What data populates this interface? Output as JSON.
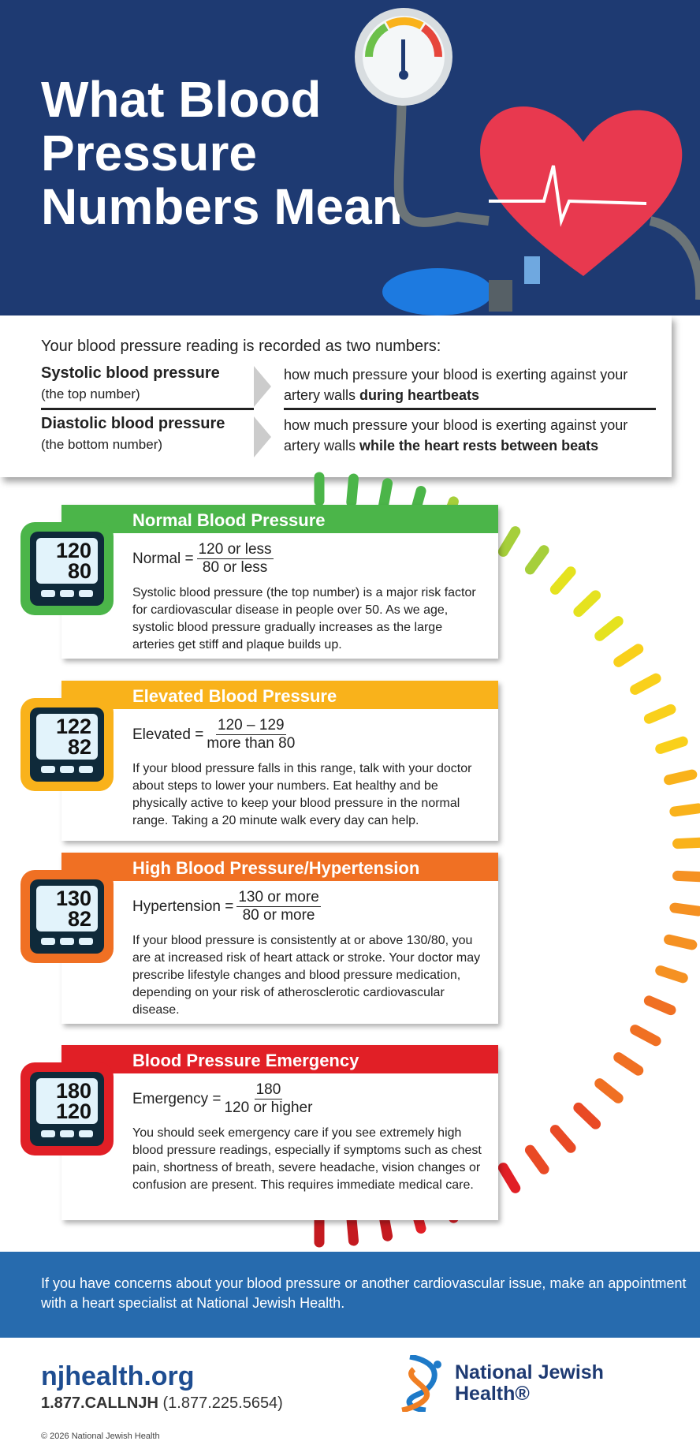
{
  "header": {
    "title": "What Blood Pressure Numbers Mean"
  },
  "info": {
    "lead": "Your blood pressure reading is recorded as two numbers:",
    "rows": [
      {
        "term": "Systolic blood pressure",
        "sub": "(the top number)",
        "desc": "how much pressure your blood is exerting against your artery walls ",
        "desc_bold": "during heartbeats"
      },
      {
        "term": "Diastolic blood pressure",
        "sub": "(the bottom number)",
        "desc": "how much pressure your blood is exerting against your artery walls ",
        "desc_bold": "while the heart rests between beats"
      }
    ]
  },
  "cards": [
    {
      "title": "Normal Blood Pressure",
      "color": "#4bb549",
      "label": "Normal =",
      "top": "120 or less",
      "bottom": "80 or less",
      "screen_top": "120",
      "screen_bottom": "80",
      "text": "Systolic blood pressure (the top number) is a major risk factor for cardiovascular disease in people over 50. As we age, systolic blood pressure gradually increases as the large arteries get stiff and plaque builds up."
    },
    {
      "title": "Elevated Blood Pressure",
      "color": "#f9b21b",
      "label": "Elevated =",
      "top": "120 – 129",
      "bottom": "more than 80",
      "screen_top": "122",
      "screen_bottom": "82",
      "text": "If your blood pressure falls in this range, talk with your doctor about steps to lower your numbers. Eat healthy and be physically active to keep your blood pressure in the normal range. Taking a 20 minute walk every day can help."
    },
    {
      "title": "High Blood Pressure/Hypertension",
      "color": "#f07023",
      "label": "Hypertension =",
      "top": "130 or more",
      "bottom": "80 or more",
      "screen_top": "130",
      "screen_bottom": "82",
      "text": "If your blood pressure is consistently at or above 130/80, you are at increased risk of heart attack or stroke. Your doctor may prescribe lifestyle changes and blood pressure medication, depending on your risk of atherosclerotic cardiovascular disease."
    },
    {
      "title": "Blood Pressure Emergency",
      "color": "#e11f26",
      "label": "Emergency =",
      "top": "180",
      "bottom": "120 or higher",
      "screen_top": "180",
      "screen_bottom": "120",
      "text": "You should seek emergency care if you see extremely high blood pressure readings, especially if symptoms such as chest pain, shortness of breath, severe headache, vision changes or confusion are present. This requires immediate medical care."
    }
  ],
  "cta": "If you have concerns about your blood pressure or another cardiovascular issue, make an appointment with a heart specialist at National Jewish Health.",
  "footer": {
    "site": "njhealth.org",
    "phone_bold": "1.877.CALLNJH",
    "phone": "(1.877.225.5654)",
    "copyright": "© 2026 National Jewish Health",
    "logo_line1": "National Jewish",
    "logo_line2": "Health®"
  }
}
